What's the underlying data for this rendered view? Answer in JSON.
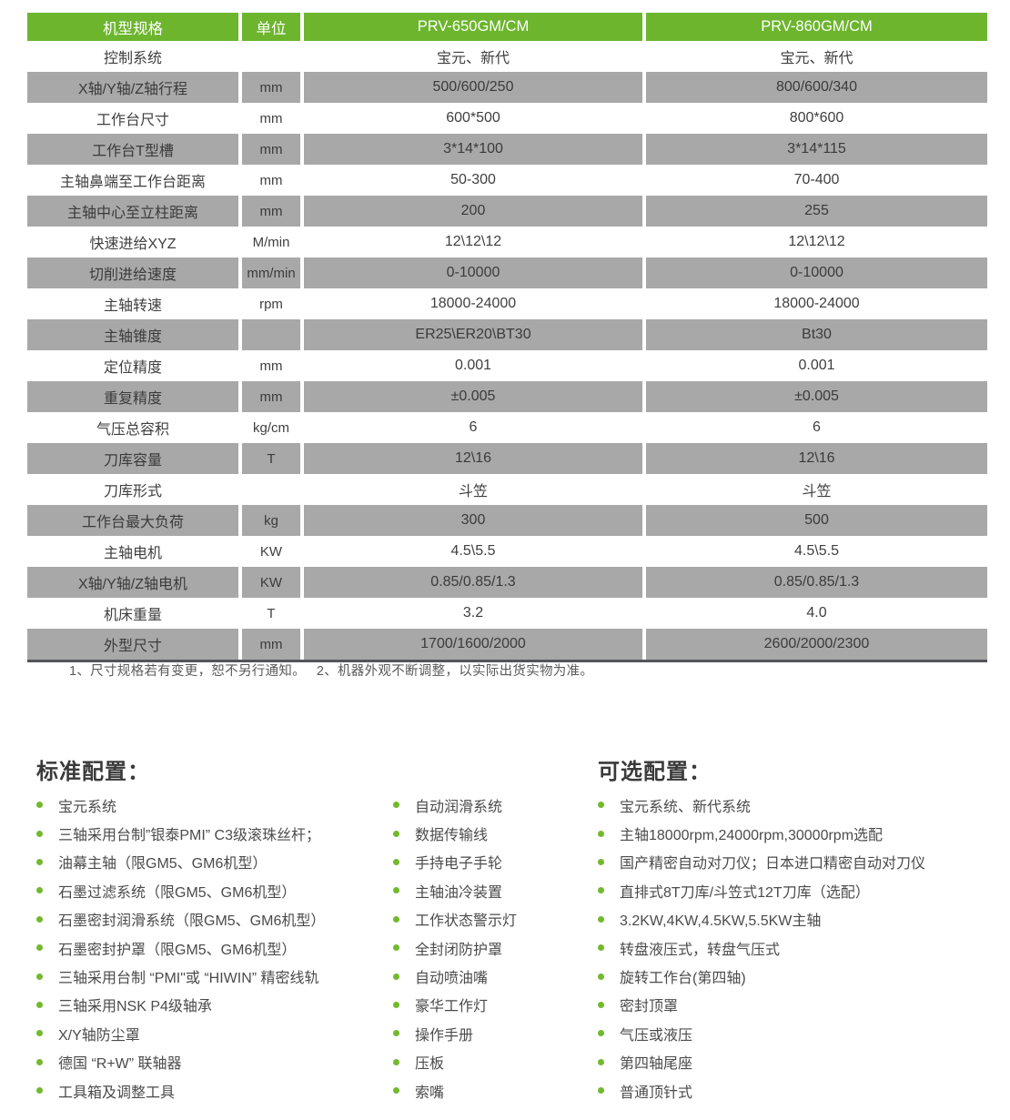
{
  "colors": {
    "accent_green": "#6cb52d",
    "bullet_green": "#72b92e",
    "row_gray": "#a8a8a8",
    "table_bottom_border": "#54555a"
  },
  "table": {
    "headers": [
      "机型规格",
      "单位",
      "PRV-650GM/CM",
      "PRV-860GM/CM"
    ],
    "rows": [
      {
        "label": "控制系统",
        "unit": "",
        "prv650": "宝元、新代",
        "prv860": "宝元、新代"
      },
      {
        "label": "X轴/Y轴/Z轴行程",
        "unit": "mm",
        "prv650": "500/600/250",
        "prv860": "800/600/340"
      },
      {
        "label": "工作台尺寸",
        "unit": "mm",
        "prv650": "600*500",
        "prv860": "800*600"
      },
      {
        "label": "工作台T型槽",
        "unit": "mm",
        "prv650": "3*14*100",
        "prv860": "3*14*115"
      },
      {
        "label": "主轴鼻端至工作台距离",
        "unit": "mm",
        "prv650": "50-300",
        "prv860": "70-400"
      },
      {
        "label": "主轴中心至立柱距离",
        "unit": "mm",
        "prv650": "200",
        "prv860": "255"
      },
      {
        "label": "快速进给XYZ",
        "unit": "M/min",
        "prv650": "12\\12\\12",
        "prv860": "12\\12\\12"
      },
      {
        "label": "切削进给速度",
        "unit": "mm/min",
        "prv650": "0-10000",
        "prv860": "0-10000"
      },
      {
        "label": "主轴转速",
        "unit": "rpm",
        "prv650": "18000-24000",
        "prv860": "18000-24000"
      },
      {
        "label": "主轴锥度",
        "unit": "",
        "prv650": "ER25\\ER20\\BT30",
        "prv860": "Bt30"
      },
      {
        "label": "定位精度",
        "unit": "mm",
        "prv650": "0.001",
        "prv860": "0.001"
      },
      {
        "label": "重复精度",
        "unit": "mm",
        "prv650": "±0.005",
        "prv860": "±0.005"
      },
      {
        "label": "气压总容积",
        "unit": "kg/cm",
        "prv650": "6",
        "prv860": "6"
      },
      {
        "label": "刀库容量",
        "unit": "T",
        "prv650": "12\\16",
        "prv860": "12\\16"
      },
      {
        "label": "刀库形式",
        "unit": "",
        "prv650": "斗笠",
        "prv860": "斗笠"
      },
      {
        "label": "工作台最大负荷",
        "unit": "kg",
        "prv650": "300",
        "prv860": "500"
      },
      {
        "label": "主轴电机",
        "unit": "KW",
        "prv650": "4.5\\5.5",
        "prv860": "4.5\\5.5"
      },
      {
        "label": "X轴/Y轴/Z轴电机",
        "unit": "KW",
        "prv650": "0.85/0.85/1.3",
        "prv860": "0.85/0.85/1.3"
      },
      {
        "label": "机床重量",
        "unit": "T",
        "prv650": "3.2",
        "prv860": "4.0"
      },
      {
        "label": "外型尺寸",
        "unit": "mm",
        "prv650": "1700/1600/2000",
        "prv860": "2600/2000/2300"
      }
    ],
    "footnote": "1、尺寸规格若有变更，恕不另行通知。　 2、机器外观不断调整，以实际出货实物为准。"
  },
  "standard_config": {
    "title": "标准配置：",
    "column1": [
      "宝元系统",
      "三轴采用台制”银泰PMI”  C3级滚珠丝杆；",
      "油幕主轴（限GM5、GM6机型）",
      "石墨过滤系统（限GM5、GM6机型）",
      "石墨密封润滑系统（限GM5、GM6机型）",
      "石墨密封护罩（限GM5、GM6机型）",
      "三轴采用台制 “PMI\"或 “HIWIN” 精密线轨",
      "三轴采用NSK  P4级轴承",
      "X/Y轴防尘罩",
      "德国 “R+W” 联轴器",
      "工具箱及调整工具"
    ],
    "column2": [
      "自动润滑系统",
      "数据传输线",
      "手持电子手轮",
      "主轴油冷装置",
      "工作状态警示灯",
      "全封闭防护罩",
      "自动喷油嘴",
      "豪华工作灯",
      "操作手册",
      "压板",
      "索嘴"
    ]
  },
  "optional_config": {
    "title": "可选配置：",
    "items": [
      "宝元系统、新代系统",
      "主轴18000rpm,24000rpm,30000rpm选配",
      "国产精密自动对刀仪；日本进口精密自动对刀仪",
      "直排式8T刀库/斗笠式12T刀库（选配）",
      "3.2KW,4KW,4.5KW,5.5KW主轴",
      "转盘液压式，转盘气压式",
      "旋转工作台(第四轴)",
      "密封顶罩",
      "气压或液压",
      "第四轴尾座",
      "普通顶针式"
    ]
  }
}
